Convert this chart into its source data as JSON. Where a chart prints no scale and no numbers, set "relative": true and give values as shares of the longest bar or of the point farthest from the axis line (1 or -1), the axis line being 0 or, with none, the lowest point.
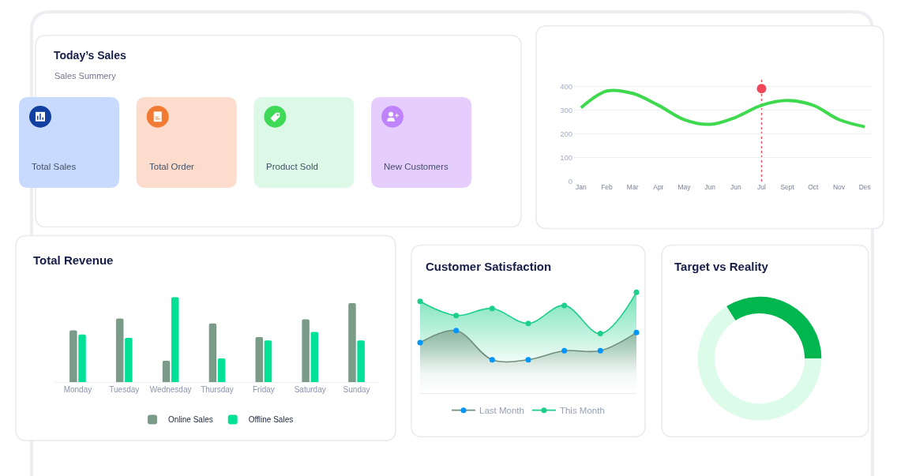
{
  "chart_data": [
    {
      "type": "other",
      "title": "Today’s Sales",
      "subtitle": "Sales Summery",
      "annotations": [
        "Total Sales",
        "Total Order",
        "Product Sold",
        "New Customers"
      ],
      "colors": [
        "#c8dafe",
        "#fbdccd",
        "#dcf8e7",
        "#e5cdfe"
      ]
    },
    {
      "type": "line",
      "categories": [
        "Jan",
        "Feb",
        "Mar",
        "Apr",
        "May",
        "Jun",
        "Jun",
        "Jul",
        "Sept",
        "Oct",
        "Nov",
        "Des"
      ],
      "series": [
        {
          "color": "#3ed94f",
          "values": [
            310,
            380,
            370,
            320,
            260,
            240,
            270,
            320,
            340,
            320,
            260,
            230
          ]
        },
        {
          "type": "scatter",
          "x": [
            "Jul"
          ],
          "values": [
            390
          ],
          "color": "#f5475a"
        }
      ],
      "ylim": [
        0,
        430
      ],
      "yticks": [
        0,
        100,
        200,
        300,
        400
      ],
      "grid": "y",
      "ref_lines": [
        {
          "axis": "x",
          "value": "Jul",
          "color": "#f5475a",
          "line_style": "dotted"
        }
      ]
    },
    {
      "type": "bar",
      "title": "Total Revenue",
      "categories": [
        "Monday",
        "Tuesday",
        "Wednesday",
        "Thursday",
        "Friday",
        "Saturday",
        "Sunday"
      ],
      "relative": true,
      "series": [
        {
          "name": "Online Sales",
          "color": "#799b87",
          "values": [
            0.61,
            0.75,
            0.25,
            0.69,
            0.53,
            0.74,
            0.93
          ]
        },
        {
          "name": "Offline Sales",
          "color": "#00e096",
          "values": [
            0.56,
            0.52,
            1,
            0.28,
            0.49,
            0.59,
            0.49
          ]
        }
      ],
      "legend": "bottom",
      "tick_labels": "x"
    },
    {
      "type": "area",
      "title": "Customer Satisfaction",
      "categories": [
        null,
        null,
        null,
        null,
        null,
        null,
        null
      ],
      "relative": true,
      "series": [
        {
          "name": "Last Month",
          "color": "#6f8f7b",
          "colors": [
            "#0095ff",
            "#0095ff",
            "#0095ff",
            "#0095ff",
            "#0095ff",
            "#0095ff",
            "#0095ff"
          ],
          "values": [
            0.5,
            0.62,
            0.33,
            0.33,
            0.42,
            0.42,
            0.6
          ]
        },
        {
          "name": "This Month",
          "color": "#1ccf8b",
          "values": [
            0.91,
            0.77,
            0.84,
            0.69,
            0.87,
            0.59,
            1
          ]
        }
      ],
      "marker": "circle",
      "legend": "bottom"
    },
    {
      "type": "donut",
      "title": "Target vs Reality",
      "categories": [
        null,
        null
      ],
      "values": [
        34,
        66
      ],
      "colors": [
        "#00b74f",
        "#dcfce9"
      ]
    }
  ]
}
